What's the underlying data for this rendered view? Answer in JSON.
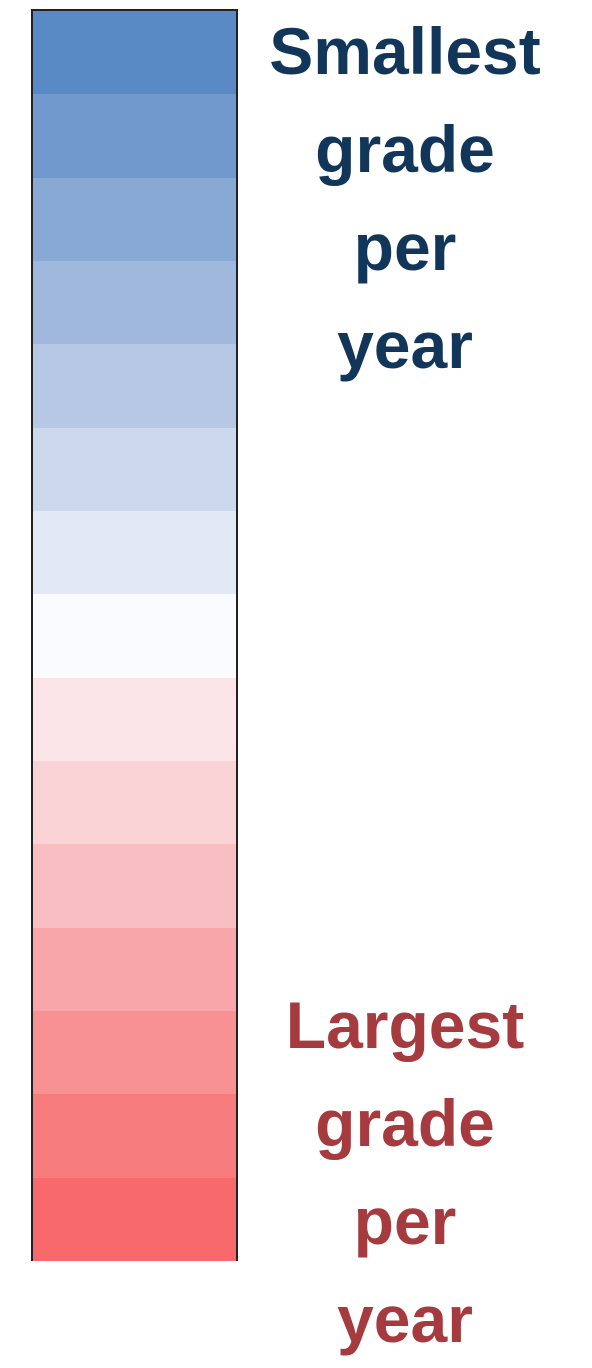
{
  "scale": {
    "colors": [
      "#5a8ac6",
      "#7199cd",
      "#88a9d4",
      "#9fb8dc",
      "#b6c8e3",
      "#ccd8eb",
      "#e3e8f5",
      "#fafbfe",
      "#fbe5e8",
      "#f9d3d6",
      "#f9bec2",
      "#f8a6aa",
      "#f79193",
      "#f77c7e",
      "#f8696b"
    ]
  },
  "labels": {
    "top": {
      "lines": [
        "Smallest",
        "grade per",
        "year"
      ],
      "color": "#12365a"
    },
    "bottom": {
      "lines": [
        "Largest",
        "grade per",
        "year"
      ],
      "color": "#a53a3f"
    }
  }
}
